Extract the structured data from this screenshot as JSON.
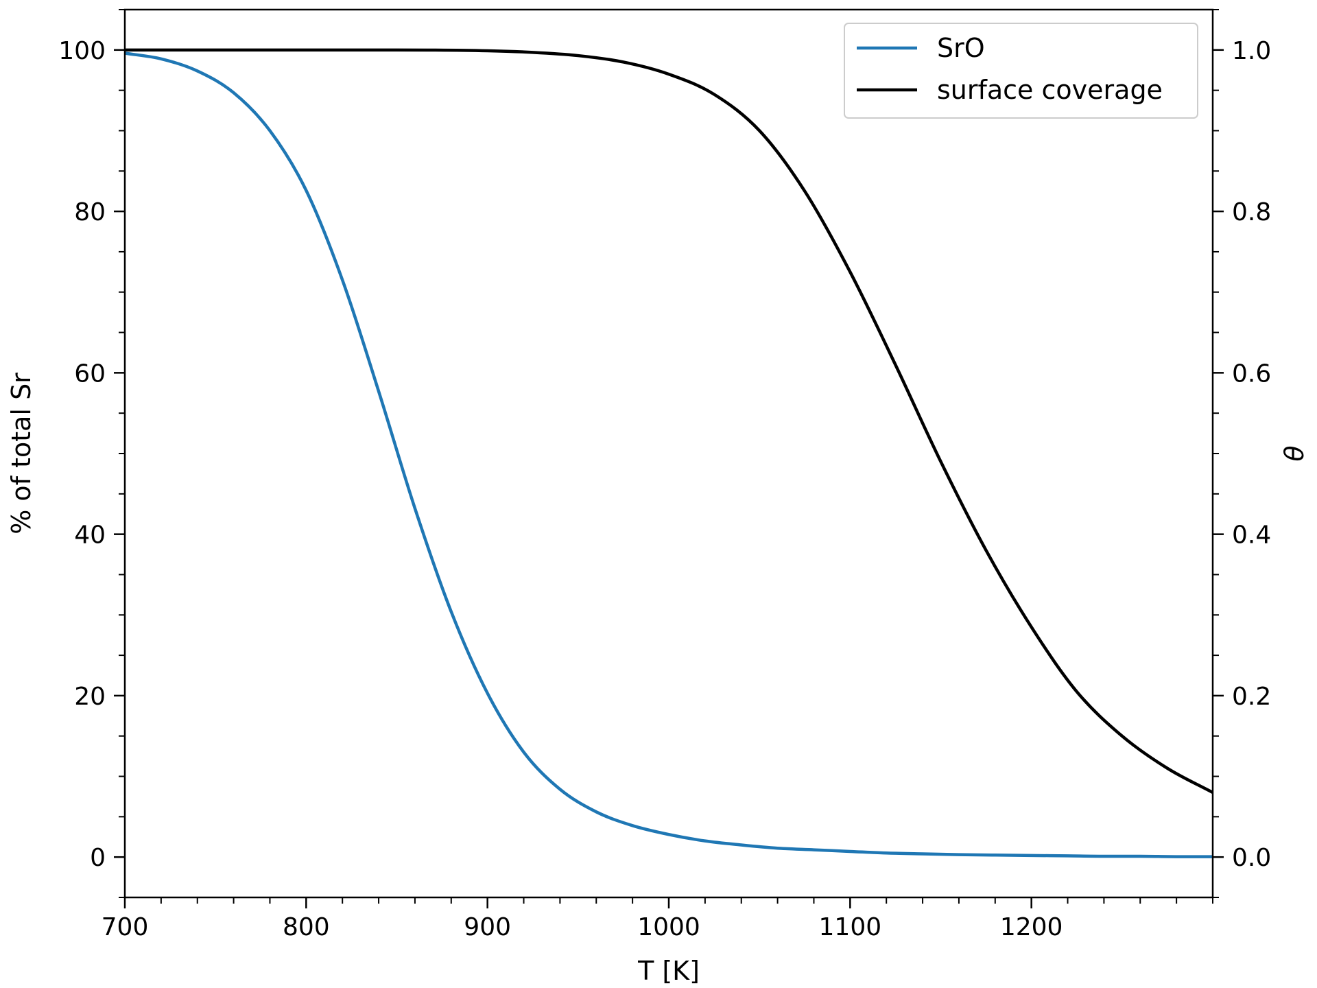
{
  "chart_data": {
    "type": "line",
    "xlabel": "T [K]",
    "ylabel_left": "% of total Sr",
    "ylabel_right": "θ",
    "xlim": [
      700,
      1300
    ],
    "ylim_left": [
      -5,
      105
    ],
    "ylim_right": [
      -0.05,
      1.05
    ],
    "x_ticks": [
      700,
      800,
      900,
      1000,
      1100,
      1200
    ],
    "x_tick_labels": [
      "700",
      "800",
      "900",
      "1000",
      "1100",
      "1200"
    ],
    "x_minor_step": 20,
    "y_left_ticks": [
      0,
      20,
      40,
      60,
      80,
      100
    ],
    "y_left_tick_labels": [
      "0",
      "20",
      "40",
      "60",
      "80",
      "100"
    ],
    "y_left_minor_step": 5,
    "y_right_ticks": [
      0.0,
      0.2,
      0.4,
      0.6,
      0.8,
      1.0
    ],
    "y_right_tick_labels": [
      "0.0",
      "0.2",
      "0.4",
      "0.6",
      "0.8",
      "1.0"
    ],
    "y_right_minor_step": 0.05,
    "legend_position": "top-right",
    "grid": false,
    "series": [
      {
        "name": "SrO",
        "axis": "left",
        "color": "#1f77b4",
        "x": [
          700,
          720,
          740,
          760,
          780,
          800,
          820,
          840,
          860,
          880,
          900,
          920,
          940,
          960,
          980,
          1000,
          1020,
          1040,
          1060,
          1080,
          1100,
          1120,
          1140,
          1160,
          1180,
          1200,
          1220,
          1240,
          1260,
          1280,
          1300
        ],
        "values": [
          99.6,
          98.9,
          97.4,
          94.7,
          90.0,
          82.6,
          71.5,
          57.7,
          43.2,
          30.4,
          20.3,
          13.0,
          8.4,
          5.6,
          3.9,
          2.8,
          2.0,
          1.5,
          1.1,
          0.9,
          0.7,
          0.5,
          0.4,
          0.3,
          0.25,
          0.2,
          0.15,
          0.1,
          0.1,
          0.05,
          0.05
        ]
      },
      {
        "name": "surface coverage",
        "axis": "right",
        "color": "#000000",
        "x": [
          700,
          750,
          800,
          850,
          900,
          925,
          950,
          975,
          1000,
          1025,
          1050,
          1075,
          1100,
          1125,
          1150,
          1175,
          1200,
          1225,
          1250,
          1275,
          1300
        ],
        "values": [
          1.0,
          1.0,
          1.0,
          1.0,
          0.999,
          0.997,
          0.993,
          0.985,
          0.97,
          0.945,
          0.9,
          0.825,
          0.725,
          0.61,
          0.49,
          0.38,
          0.285,
          0.205,
          0.15,
          0.11,
          0.08
        ]
      }
    ]
  }
}
